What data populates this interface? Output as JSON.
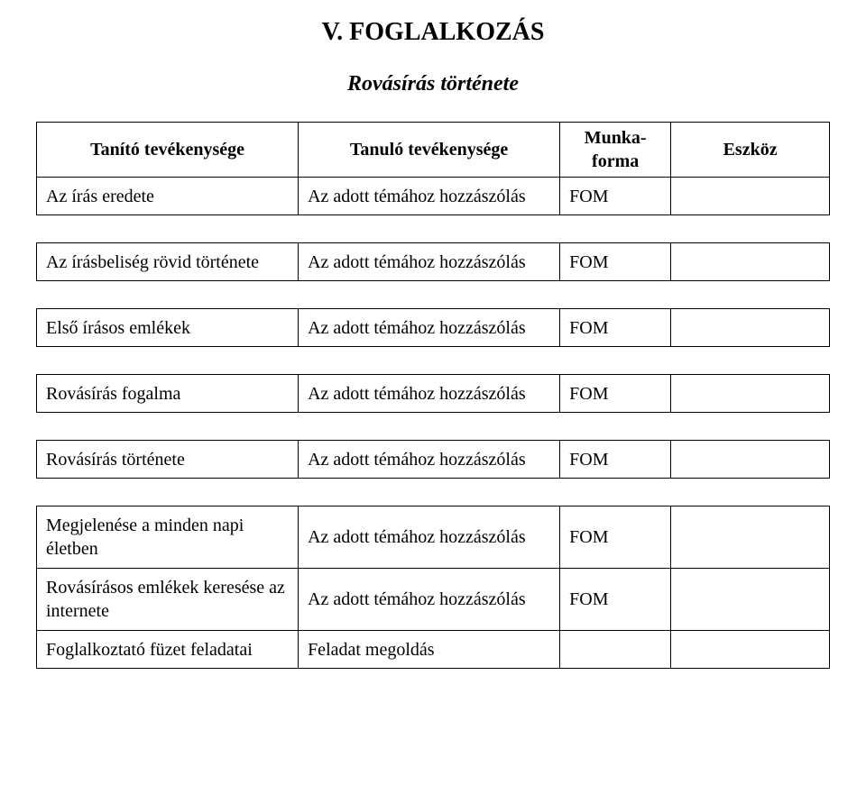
{
  "title": "V.   FOGLALKOZÁS",
  "subtitle": "Rovásírás története",
  "headers": {
    "col1": "Tanító tevékenysége",
    "col2": "Tanuló tevékenysége",
    "col3": "Munka-forma",
    "col4": "Eszköz"
  },
  "blocks": [
    {
      "rows": [
        {
          "c1": "Az írás eredete",
          "c2": "Az adott témához hozzászólás",
          "c3": "FOM",
          "c4": ""
        }
      ]
    },
    {
      "rows": [
        {
          "c1": "Az írásbeliség rövid története",
          "c2": "Az adott témához hozzászólás",
          "c3": "FOM",
          "c4": ""
        }
      ]
    },
    {
      "rows": [
        {
          "c1": "Első írásos emlékek",
          "c2": "Az adott témához hozzászólás",
          "c3": "FOM",
          "c4": ""
        }
      ]
    },
    {
      "rows": [
        {
          "c1": "Rovásírás fogalma",
          "c2": "Az adott témához hozzászólás",
          "c3": "FOM",
          "c4": ""
        }
      ]
    },
    {
      "rows": [
        {
          "c1": "Rovásírás története",
          "c2": "Az adott témához hozzászólás",
          "c3": "FOM",
          "c4": ""
        }
      ]
    },
    {
      "rows": [
        {
          "c1": "Megjelenése a minden napi életben",
          "c2": "Az adott témához hozzászólás",
          "c3": "FOM",
          "c4": "",
          "tall": true
        },
        {
          "c1": "Rovásírásos emlékek keresése az internete",
          "c2": "Az adott témához hozzászólás",
          "c3": "FOM",
          "c4": "",
          "tall": true
        },
        {
          "c1": "Foglalkoztató füzet feladatai",
          "c2": "Feladat megoldás",
          "c3": "",
          "c4": ""
        }
      ]
    }
  ]
}
